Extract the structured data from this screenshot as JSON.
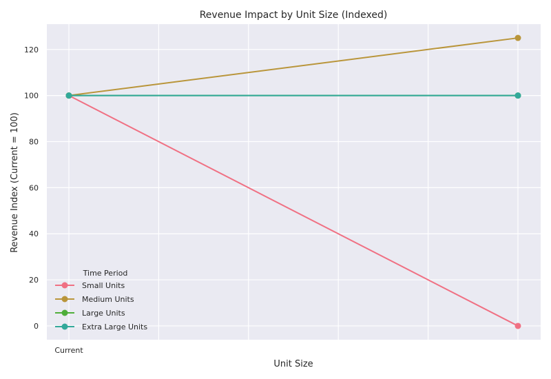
{
  "chart_data": {
    "type": "line",
    "title": "Revenue Impact by Unit Size (Indexed)",
    "xlabel": "Unit Size",
    "ylabel": "Revenue Index (Current = 100)",
    "categories": [
      "Current",
      ""
    ],
    "x_tick_labels": [
      "Current"
    ],
    "ylim": [
      -6,
      131
    ],
    "y_ticks": [
      0,
      20,
      40,
      60,
      80,
      100,
      120
    ],
    "grid": true,
    "background": "#eaeaf2",
    "grid_color": "#ffffff",
    "legend": {
      "title": "Time Period",
      "placement": "lower-left"
    },
    "series": [
      {
        "name": "Small Units",
        "color": "#f07083",
        "values": [
          100,
          0
        ]
      },
      {
        "name": "Medium Units",
        "color": "#b9953a",
        "values": [
          100,
          125
        ]
      },
      {
        "name": "Large Units",
        "color": "#4fae3a",
        "values": [
          100,
          100
        ]
      },
      {
        "name": "Extra Large Units",
        "color": "#33a99a",
        "values": [
          100,
          100
        ]
      }
    ]
  }
}
